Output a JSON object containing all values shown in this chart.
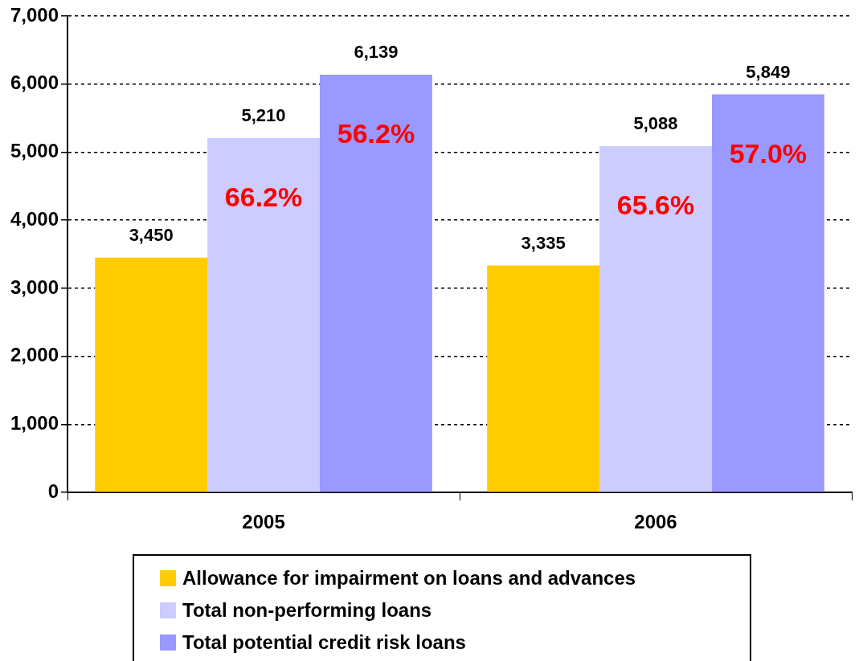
{
  "chart_data": {
    "type": "bar",
    "categories": [
      "2005",
      "2006"
    ],
    "series": [
      {
        "name": "Allowance for impairment on loans and advances",
        "color": "#ffcc00",
        "values": [
          3450,
          3335
        ],
        "value_labels": [
          "3,450",
          "3,335"
        ]
      },
      {
        "name": "Total non-performing loans",
        "color": "#ccccff",
        "values": [
          5210,
          5088
        ],
        "value_labels": [
          "5,210",
          "5,088"
        ]
      },
      {
        "name": "Total potential credit risk loans",
        "color": "#9999ff",
        "values": [
          6139,
          5849
        ],
        "value_labels": [
          "6,139",
          "5,849"
        ]
      }
    ],
    "ylim": [
      0,
      7000
    ],
    "yticks": [
      {
        "value": 0,
        "label": "0"
      },
      {
        "value": 1000,
        "label": "1,000"
      },
      {
        "value": 2000,
        "label": "2,000"
      },
      {
        "value": 3000,
        "label": "3,000"
      },
      {
        "value": 4000,
        "label": "4,000"
      },
      {
        "value": 5000,
        "label": "5,000"
      },
      {
        "value": 6000,
        "label": "6,000"
      },
      {
        "value": 7000,
        "label": "7,000"
      }
    ],
    "grid": "y",
    "legend": "bottom",
    "annotations": [
      "66.2%",
      "56.2%",
      "65.6%",
      "57.0%"
    ]
  }
}
